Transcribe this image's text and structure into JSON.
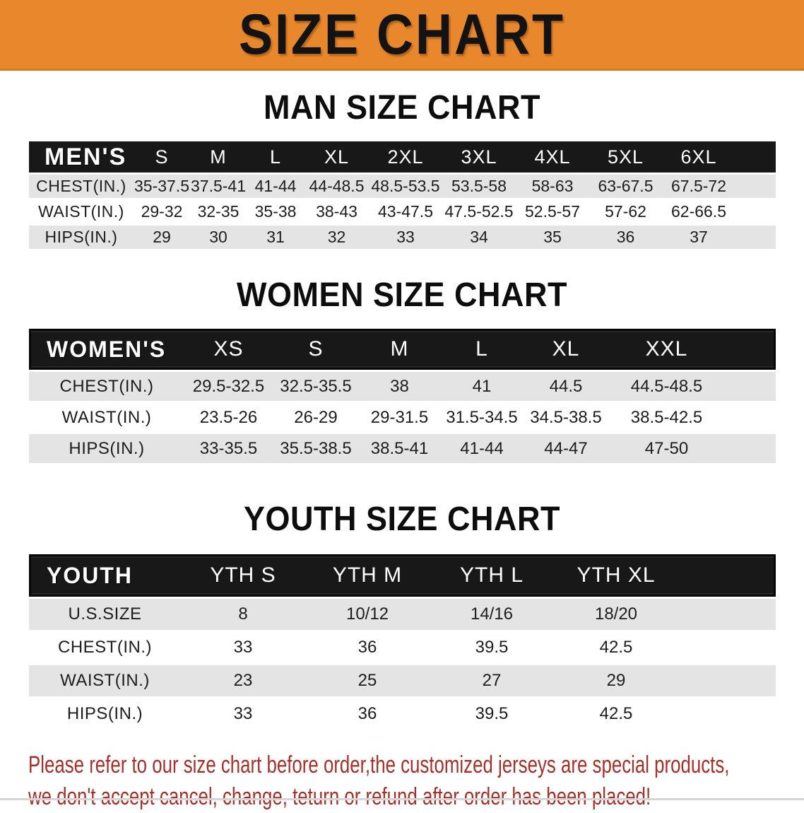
{
  "banner": {
    "title": "SIZE CHART"
  },
  "colors": {
    "banner_orange": "#E8872C",
    "banner_edge": "#D4781F",
    "header_bar_black": "#181818",
    "row_gray": "#E4E4E4",
    "disclaimer_red": "#A5302A",
    "body_text": "#1D1D1D"
  },
  "sections": {
    "men": {
      "title": "MAN SIZE CHART",
      "table": {
        "header": [
          "MEN'S",
          "S",
          "M",
          "L",
          "XL",
          "2XL",
          "3XL",
          "4XL",
          "5XL",
          "6XL"
        ],
        "rows": [
          {
            "label": "CHEST(IN.)",
            "values": [
              "35-37.5",
              "37.5-41",
              "41-44",
              "44-48.5",
              "48.5-53.5",
              "53.5-58",
              "58-63",
              "63-67.5",
              "67.5-72"
            ]
          },
          {
            "label": "WAIST(IN.)",
            "values": [
              "29-32",
              "32-35",
              "35-38",
              "38-43",
              "43-47.5",
              "47.5-52.5",
              "52.5-57",
              "57-62",
              "62-66.5"
            ]
          },
          {
            "label": "HIPS(IN.)",
            "values": [
              "29",
              "30",
              "31",
              "32",
              "33",
              "34",
              "35",
              "36",
              "37"
            ]
          }
        ]
      }
    },
    "women": {
      "title": "WOMEN SIZE CHART",
      "table": {
        "header": [
          "WOMEN'S",
          "XS",
          "S",
          "M",
          "L",
          "XL",
          "XXL"
        ],
        "rows": [
          {
            "label": "CHEST(IN.)",
            "values": [
              "29.5-32.5",
              "32.5-35.5",
              "38",
              "41",
              "44.5",
              "44.5-48.5"
            ]
          },
          {
            "label": "WAIST(IN.)",
            "values": [
              "23.5-26",
              "26-29",
              "29-31.5",
              "31.5-34.5",
              "34.5-38.5",
              "38.5-42.5"
            ]
          },
          {
            "label": "HIPS(IN.)",
            "values": [
              "33-35.5",
              "35.5-38.5",
              "38.5-41",
              "41-44",
              "44-47",
              "47-50"
            ]
          }
        ]
      }
    },
    "youth": {
      "title": "YOUTH SIZE CHART",
      "table": {
        "header": [
          "YOUTH",
          "YTH S",
          "YTH M",
          "YTH L",
          "YTH XL"
        ],
        "rows": [
          {
            "label": "U.S.SIZE",
            "values": [
              "8",
              "10/12",
              "14/16",
              "18/20"
            ]
          },
          {
            "label": "CHEST(IN.)",
            "values": [
              "33",
              "36",
              "39.5",
              "42.5"
            ]
          },
          {
            "label": "WAIST(IN.)",
            "values": [
              "23",
              "25",
              "27",
              "29"
            ]
          },
          {
            "label": "HIPS(IN.)",
            "values": [
              "33",
              "36",
              "39.5",
              "42.5"
            ]
          }
        ]
      }
    }
  },
  "disclaimer": {
    "line1": "Please refer to our size chart before order,the customized jerseys are special products,",
    "line2": "we don't accept cancel, change, teturn or refund after order has been placed!"
  }
}
